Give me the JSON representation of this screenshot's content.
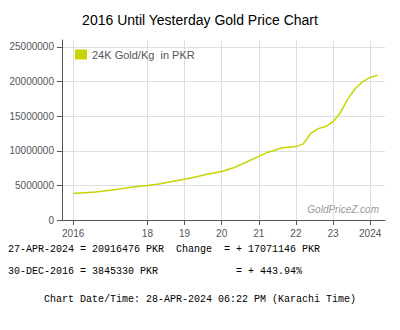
{
  "chart_data": {
    "type": "line",
    "title": "2016 Until Yesterday Gold Price Chart",
    "x": [
      2016.0,
      2016.3,
      2016.6,
      2017.0,
      2017.3,
      2017.6,
      2018.0,
      2018.3,
      2018.6,
      2019.0,
      2019.3,
      2019.6,
      2020.0,
      2020.3,
      2020.6,
      2021.0,
      2021.2,
      2021.4,
      2021.6,
      2021.8,
      2022.0,
      2022.2,
      2022.4,
      2022.6,
      2022.8,
      2023.0,
      2023.2,
      2023.4,
      2023.6,
      2023.8,
      2024.0,
      2024.2
    ],
    "series": [
      {
        "name": "24K Gold/Kg  in PKR",
        "color": "#c8d400",
        "values": [
          3845330,
          3950000,
          4050000,
          4300000,
          4500000,
          4750000,
          5000000,
          5200000,
          5500000,
          5900000,
          6200000,
          6600000,
          7000000,
          7500000,
          8200000,
          9200000,
          9700000,
          10000000,
          10400000,
          10500000,
          10600000,
          11000000,
          12500000,
          13200000,
          13500000,
          14200000,
          15500000,
          17500000,
          19000000,
          20000000,
          20600000,
          20916476
        ]
      }
    ],
    "xlim": [
      2015.7,
      2024.4
    ],
    "xticks": [
      2016,
      {
        "value": 2018,
        "label": "18"
      },
      {
        "value": 2019,
        "label": "19"
      },
      {
        "value": 2020,
        "label": "20"
      },
      {
        "value": 2021,
        "label": "21"
      },
      {
        "value": 2022,
        "label": "22"
      },
      {
        "value": 2023,
        "label": "23"
      },
      2024
    ],
    "ylim": [
      0,
      26000000
    ],
    "yticks": [
      0,
      5000000,
      10000000,
      15000000,
      20000000,
      25000000
    ],
    "grid": true,
    "legend": "upper left",
    "watermark": "GoldPriceZ.com",
    "annotations": [
      "27-APR-2024 = 20916476 PKR  Change  = + 17071146 PKR",
      "30-DEC-2016 = 3845330 PKR             = + 443.94%",
      "Chart Date/Time: 28-APR-2024 06:22 PM (Karachi Time)"
    ]
  }
}
